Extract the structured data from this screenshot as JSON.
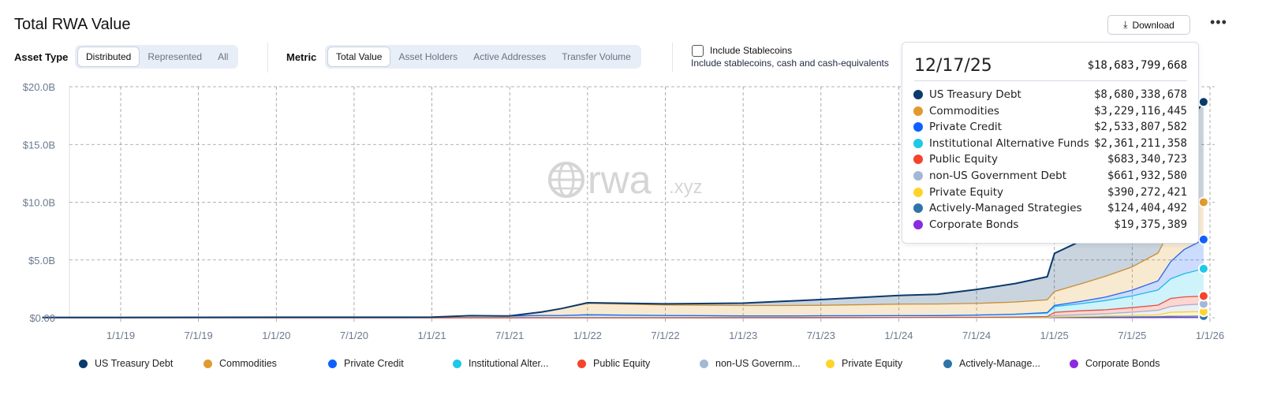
{
  "header": {
    "title": "Total RWA Value",
    "download_label": "Download",
    "more_label": "•••"
  },
  "filters": {
    "asset_type_label": "Asset Type",
    "asset_type_options": [
      "Distributed",
      "Represented",
      "All"
    ],
    "asset_type_selected": "Distributed",
    "metric_label": "Metric",
    "metric_options": [
      "Total Value",
      "Asset Holders",
      "Active Addresses",
      "Transfer Volume"
    ],
    "metric_selected": "Total Value",
    "stablecoins_label": "Include Stablecoins",
    "stablecoins_desc": "Include stablecoins, cash and cash-equivalents",
    "stablecoins_checked": false
  },
  "watermark": {
    "text": "rwa",
    "suffix": ".xyz"
  },
  "tooltip": {
    "date": "12/17/25",
    "total": "$18,683,799,668",
    "rows": [
      {
        "name": "US Treasury Debt",
        "value": "$8,680,338,678",
        "color": "#0b3a6b"
      },
      {
        "name": "Commodities",
        "value": "$3,229,116,445",
        "color": "#e09a2f"
      },
      {
        "name": "Private Credit",
        "value": "$2,533,807,582",
        "color": "#1060ff"
      },
      {
        "name": "Institutional Alternative Funds",
        "value": "$2,361,211,358",
        "color": "#1ec8e8"
      },
      {
        "name": "Public Equity",
        "value": "$683,340,723",
        "color": "#f4442e"
      },
      {
        "name": "non-US Government Debt",
        "value": "$661,932,580",
        "color": "#a3b8d6"
      },
      {
        "name": "Private Equity",
        "value": "$390,272,421",
        "color": "#ffd42a"
      },
      {
        "name": "Actively-Managed Strategies",
        "value": "$124,404,492",
        "color": "#2f74a8"
      },
      {
        "name": "Corporate Bonds",
        "value": "$19,375,389",
        "color": "#8a2be2"
      }
    ]
  },
  "legend": [
    "US Treasury Debt",
    "Commodities",
    "Private Credit",
    "Institutional Alter...",
    "Public Equity",
    "non-US Governm...",
    "Private Equity",
    "Actively-Manage...",
    "Corporate Bonds"
  ],
  "chart_data": {
    "type": "area",
    "stacked": true,
    "title": "Total RWA Value",
    "ylim": [
      0,
      20
    ],
    "y_unit": "billion USD",
    "y_ticks": [
      "$0.00",
      "$5.0B",
      "$10.0B",
      "$15.0B",
      "$20.0B"
    ],
    "x_ticks": [
      "1/1/19",
      "7/1/19",
      "1/1/20",
      "7/1/20",
      "1/1/21",
      "7/1/21",
      "1/1/22",
      "7/1/22",
      "1/1/23",
      "7/1/23",
      "1/1/24",
      "7/1/24",
      "1/1/25",
      "7/1/25",
      "1/1/26"
    ],
    "grid": true,
    "legend_position": "bottom",
    "x": [
      "2018-07-01",
      "2019-01-01",
      "2020-01-01",
      "2021-01-01",
      "2021-04-01",
      "2021-07-01",
      "2021-09-15",
      "2021-11-01",
      "2022-01-01",
      "2022-07-01",
      "2023-01-01",
      "2023-04-01",
      "2023-07-01",
      "2024-01-01",
      "2024-04-01",
      "2024-07-01",
      "2024-10-01",
      "2024-12-15",
      "2025-01-01",
      "2025-03-01",
      "2025-05-01",
      "2025-07-01",
      "2025-09-01",
      "2025-10-01",
      "2025-11-01",
      "2025-12-17"
    ],
    "series": [
      {
        "name": "Corporate Bonds",
        "color": "#8a2be2",
        "values": [
          0,
          0,
          0,
          0,
          0,
          0,
          0,
          0,
          0,
          0,
          0,
          0,
          0,
          0.005,
          0.005,
          0.005,
          0.01,
          0.01,
          0.01,
          0.01,
          0.01,
          0.015,
          0.015,
          0.02,
          0.02,
          0.019
        ]
      },
      {
        "name": "Actively-Managed Strategies",
        "color": "#2f74a8",
        "values": [
          0,
          0,
          0,
          0,
          0,
          0,
          0,
          0,
          0,
          0,
          0,
          0,
          0,
          0,
          0,
          0,
          0,
          0,
          0.03,
          0.04,
          0.05,
          0.06,
          0.08,
          0.1,
          0.11,
          0.124
        ]
      },
      {
        "name": "Private Equity",
        "color": "#ffd42a",
        "values": [
          0,
          0,
          0,
          0,
          0,
          0,
          0,
          0,
          0,
          0,
          0,
          0,
          0,
          0,
          0,
          0,
          0.01,
          0.02,
          0.03,
          0.05,
          0.08,
          0.1,
          0.15,
          0.35,
          0.37,
          0.39
        ]
      },
      {
        "name": "non-US Government Debt",
        "color": "#a3b8d6",
        "values": [
          0,
          0,
          0,
          0,
          0,
          0,
          0,
          0,
          0,
          0,
          0,
          0,
          0.01,
          0.01,
          0.02,
          0.02,
          0.03,
          0.05,
          0.1,
          0.15,
          0.2,
          0.3,
          0.4,
          0.5,
          0.6,
          0.662
        ]
      },
      {
        "name": "Public Equity",
        "color": "#f4442e",
        "values": [
          0,
          0,
          0,
          0,
          0,
          0,
          0,
          0,
          0,
          0,
          0.01,
          0.01,
          0.01,
          0.01,
          0.01,
          0.01,
          0.01,
          0.02,
          0.3,
          0.35,
          0.35,
          0.4,
          0.45,
          0.7,
          0.7,
          0.683
        ]
      },
      {
        "name": "Institutional Alternative Funds",
        "color": "#1ec8e8",
        "values": [
          0.03,
          0.03,
          0.04,
          0.05,
          0.18,
          0.15,
          0.2,
          0.2,
          0.25,
          0.2,
          0.15,
          0.15,
          0.15,
          0.15,
          0.15,
          0.2,
          0.25,
          0.3,
          0.5,
          0.6,
          0.8,
          1.0,
          1.3,
          1.7,
          2.0,
          2.361
        ]
      },
      {
        "name": "Private Credit",
        "color": "#1060ff",
        "values": [
          0,
          0,
          0,
          0,
          0,
          0,
          0,
          0,
          0,
          0,
          0,
          0,
          0,
          0,
          0,
          0,
          0,
          0.05,
          0.1,
          0.2,
          0.3,
          0.5,
          0.8,
          1.5,
          2.1,
          2.534
        ]
      },
      {
        "name": "Commodities",
        "color": "#e09a2f",
        "values": [
          0,
          0,
          0,
          0,
          0,
          0,
          0.3,
          0.6,
          1.0,
          0.9,
          0.9,
          0.9,
          0.9,
          1.0,
          1.0,
          1.0,
          1.05,
          1.1,
          1.2,
          1.5,
          1.8,
          2.0,
          2.4,
          2.8,
          3.0,
          3.229
        ]
      },
      {
        "name": "US Treasury Debt",
        "color": "#0b3a6b",
        "values": [
          0,
          0,
          0,
          0,
          0,
          0,
          0,
          0,
          0.05,
          0.1,
          0.2,
          0.35,
          0.5,
          0.75,
          0.85,
          1.2,
          1.6,
          2.0,
          3.3,
          3.7,
          4.2,
          4.6,
          5.5,
          6.5,
          7.5,
          8.68
        ]
      }
    ]
  }
}
